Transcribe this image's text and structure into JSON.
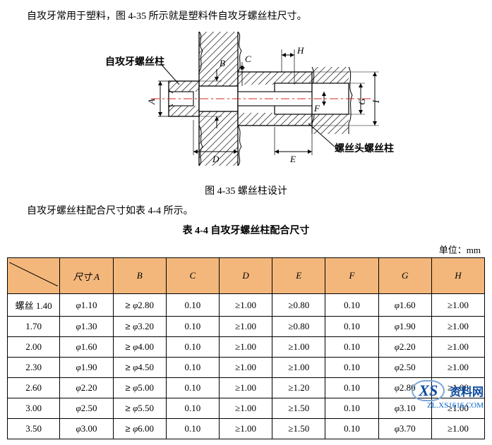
{
  "text": {
    "intro": "自攻牙常用于塑料，图 4-35 所示就是塑料件自攻牙螺丝柱尺寸。",
    "fig_caption": "图 4-35  螺丝柱设计",
    "para2": "自攻牙螺丝柱配合尺寸如表 4-4 所示。",
    "table_caption": "表 4-4  自攻牙螺丝柱配合尺寸",
    "unit": "单位：mm"
  },
  "diagram": {
    "labels": {
      "left_boss": "自攻牙螺丝柱",
      "right_boss": "螺丝头螺丝柱",
      "A": "A",
      "B": "B",
      "C": "C",
      "D": "D",
      "E": "E",
      "F": "F",
      "G": "G",
      "H": "H",
      "I": "I"
    },
    "colors": {
      "stroke": "#000000",
      "hatch": "#000000",
      "centerline": "#d22",
      "bg": "#ffffff"
    }
  },
  "table": {
    "headers": [
      "尺寸 A",
      "B",
      "C",
      "D",
      "E",
      "F",
      "G",
      "H"
    ],
    "first_col": [
      "螺丝 1.40",
      "1.70",
      "2.00",
      "2.30",
      "2.60",
      "3.00",
      "3.50"
    ],
    "rows": [
      [
        "φ1.10",
        "≥φ2.80",
        "0.10",
        "≥1.00",
        "≥0.80",
        "0.10",
        "φ1.60",
        "≥1.00"
      ],
      [
        "φ1.30",
        "≥φ3.20",
        "0.10",
        "≥1.00",
        "≥0.80",
        "0.10",
        "φ1.90",
        "≥1.00"
      ],
      [
        "φ1.60",
        "≥φ4.00",
        "0.10",
        "≥1.00",
        "≥1.00",
        "0.10",
        "φ2.20",
        "≥1.00"
      ],
      [
        "φ1.90",
        "≥φ4.50",
        "0.10",
        "≥1.00",
        "≥1.00",
        "0.10",
        "φ2.50",
        "≥1.00"
      ],
      [
        "φ2.20",
        "≥φ5.00",
        "0.10",
        "≥1.00",
        "≥1.20",
        "0.10",
        "φ2.80",
        "≥1.00"
      ],
      [
        "φ2.50",
        "≥φ5.50",
        "0.10",
        "≥1.00",
        "≥1.50",
        "0.10",
        "φ3.10",
        "≥1.00"
      ],
      [
        "φ3.00",
        "≥φ6.00",
        "0.10",
        "≥1.00",
        "≥1.50",
        "0.10",
        "φ3.70",
        "≥1.00"
      ]
    ],
    "header_bg": "#f3b77c",
    "border_color": "#000000"
  },
  "watermark": {
    "logo": "XS",
    "brand": "资料网",
    "url": "ZL.XS1616.COM"
  }
}
